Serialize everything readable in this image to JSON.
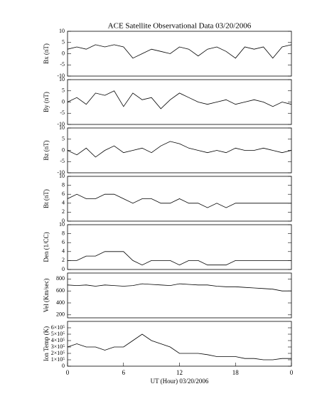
{
  "chart_data": [
    {
      "type": "line",
      "title": "ACE Satellite Observational Data  03/20/2006",
      "y_label": "Bx (nT)",
      "color": "#000000",
      "x": [
        0,
        1,
        2,
        3,
        4,
        5,
        6,
        7,
        8,
        9,
        10,
        11,
        12,
        13,
        14,
        15,
        16,
        17,
        18,
        19,
        20,
        21,
        22,
        23,
        24
      ],
      "values": [
        2,
        3,
        2,
        4,
        3,
        4,
        3,
        -2,
        0,
        2,
        1,
        0,
        3,
        2,
        -1,
        2,
        3,
        1,
        -2,
        3,
        2,
        3,
        -2,
        3,
        4
      ],
      "xlim": [
        0,
        24
      ],
      "ylim": [
        -10,
        10
      ],
      "yticks": [
        -10,
        -5,
        0,
        5,
        10
      ]
    },
    {
      "type": "line",
      "y_label": "By (nT)",
      "color": "#000000",
      "x": [
        0,
        1,
        2,
        3,
        4,
        5,
        6,
        7,
        8,
        9,
        10,
        11,
        12,
        13,
        14,
        15,
        16,
        17,
        18,
        19,
        20,
        21,
        22,
        23,
        24
      ],
      "values": [
        0,
        2,
        -1,
        4,
        3,
        5,
        -2,
        4,
        1,
        2,
        -3,
        1,
        4,
        2,
        0,
        -1,
        0,
        1,
        -1,
        0,
        1,
        0,
        -2,
        0,
        -1
      ],
      "xlim": [
        0,
        24
      ],
      "ylim": [
        -10,
        10
      ],
      "yticks": [
        -10,
        -5,
        0,
        5,
        10
      ]
    },
    {
      "type": "line",
      "y_label": "Bz (nT)",
      "color": "#000000",
      "x": [
        0,
        1,
        2,
        3,
        4,
        5,
        6,
        7,
        8,
        9,
        10,
        11,
        12,
        13,
        14,
        15,
        16,
        17,
        18,
        19,
        20,
        21,
        22,
        23,
        24
      ],
      "values": [
        0,
        -2,
        1,
        -3,
        0,
        2,
        -1,
        0,
        1,
        -1,
        2,
        4,
        3,
        1,
        0,
        -1,
        0,
        -1,
        1,
        0,
        0,
        1,
        0,
        -1,
        0
      ],
      "xlim": [
        0,
        24
      ],
      "ylim": [
        -10,
        10
      ],
      "yticks": [
        -10,
        -5,
        0,
        5,
        10
      ]
    },
    {
      "type": "line",
      "y_label": "Bt (nT)",
      "color": "#000000",
      "x": [
        0,
        1,
        2,
        3,
        4,
        5,
        6,
        7,
        8,
        9,
        10,
        11,
        12,
        13,
        14,
        15,
        16,
        17,
        18,
        19,
        20,
        21,
        22,
        23,
        24
      ],
      "values": [
        5,
        6,
        5,
        5,
        6,
        6,
        5,
        4,
        5,
        5,
        4,
        4,
        5,
        4,
        4,
        3,
        4,
        3,
        4,
        4,
        4,
        4,
        4,
        4,
        4
      ],
      "xlim": [
        0,
        24
      ],
      "ylim": [
        0,
        10
      ],
      "yticks": [
        0,
        2,
        4,
        6,
        8,
        10
      ]
    },
    {
      "type": "line",
      "y_label": "Den (1/CC)",
      "color": "#000000",
      "x": [
        0,
        1,
        2,
        3,
        4,
        5,
        6,
        7,
        8,
        9,
        10,
        11,
        12,
        13,
        14,
        15,
        16,
        17,
        18,
        19,
        20,
        21,
        22,
        23,
        24
      ],
      "values": [
        2,
        2,
        3,
        3,
        4,
        4,
        4,
        2,
        1,
        2,
        2,
        2,
        1,
        2,
        2,
        1,
        1,
        1,
        2,
        2,
        2,
        2,
        2,
        2,
        2
      ],
      "xlim": [
        0,
        24
      ],
      "ylim": [
        0,
        10
      ],
      "yticks": [
        0,
        2,
        4,
        6,
        8,
        10
      ]
    },
    {
      "type": "line",
      "y_label": "Vel (Km/sec)",
      "color": "#000000",
      "x": [
        0,
        1,
        2,
        3,
        4,
        5,
        6,
        7,
        8,
        9,
        10,
        11,
        12,
        13,
        14,
        15,
        16,
        17,
        18,
        19,
        20,
        21,
        22,
        23,
        24
      ],
      "values": [
        700,
        690,
        700,
        680,
        700,
        690,
        680,
        690,
        720,
        710,
        700,
        690,
        720,
        710,
        700,
        700,
        680,
        670,
        670,
        660,
        650,
        640,
        630,
        600,
        600
      ],
      "xlim": [
        0,
        24
      ],
      "ylim": [
        150,
        900
      ],
      "yticks": [
        200,
        400,
        600,
        800
      ]
    },
    {
      "type": "line",
      "y_label": "Ion Temp (K)",
      "x_label": "UT (Hour)  03/20/2006",
      "color": "#000000",
      "x": [
        0,
        1,
        2,
        3,
        4,
        5,
        6,
        7,
        8,
        9,
        10,
        11,
        12,
        13,
        14,
        15,
        16,
        17,
        18,
        19,
        20,
        21,
        22,
        23,
        24
      ],
      "values": [
        300000,
        350000,
        300000,
        300000,
        250000,
        300000,
        300000,
        400000,
        500000,
        400000,
        350000,
        300000,
        200000,
        200000,
        200000,
        180000,
        150000,
        150000,
        150000,
        120000,
        120000,
        100000,
        100000,
        120000,
        120000
      ],
      "xlim": [
        0,
        24
      ],
      "xticks": [
        0,
        6,
        12,
        18,
        {
          "value": 24,
          "label": "0"
        }
      ],
      "ylim": [
        0,
        700000
      ],
      "yticks": [
        0,
        {
          "value": 100000,
          "label": "1×10⁵"
        },
        {
          "value": 200000,
          "label": "2×10⁵"
        },
        {
          "value": 300000,
          "label": "3×10⁵"
        },
        {
          "value": 400000,
          "label": "4×10⁵"
        },
        {
          "value": 500000,
          "label": "5×10⁵"
        },
        {
          "value": 600000,
          "label": "6×10⁵"
        }
      ]
    }
  ]
}
